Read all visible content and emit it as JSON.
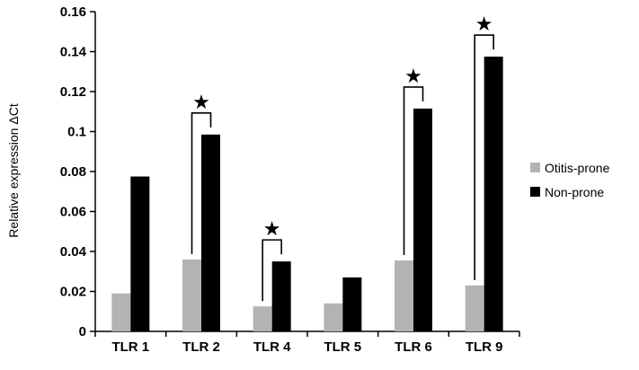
{
  "chart_data": {
    "type": "bar",
    "title": "",
    "xlabel": "",
    "ylabel": "Relative expression ΔCt",
    "ylim": [
      0,
      0.16
    ],
    "yticks": [
      0,
      0.02,
      0.04,
      0.06,
      0.08,
      0.1,
      0.12,
      0.14,
      0.16
    ],
    "ytick_labels": [
      "0",
      "0.02",
      "0.04",
      "0.06",
      "0.08",
      "0.1",
      "0.12",
      "0.14",
      "0.16"
    ],
    "categories": [
      "TLR 1",
      "TLR 2",
      "TLR 4",
      "TLR 5",
      "TLR 6",
      "TLR 9"
    ],
    "series": [
      {
        "name": "Otitis-prone",
        "color": "#b3b3b3",
        "values": [
          0.019,
          0.036,
          0.0125,
          0.014,
          0.0355,
          0.023
        ]
      },
      {
        "name": "Non-prone",
        "color": "#000000",
        "values": [
          0.0775,
          0.0985,
          0.035,
          0.027,
          0.1115,
          0.1375
        ]
      }
    ],
    "significance": {
      "marker": "★",
      "categories": [
        "TLR 2",
        "TLR 4",
        "TLR 6",
        "TLR 9"
      ]
    },
    "legend_position": "right",
    "grid": false
  }
}
